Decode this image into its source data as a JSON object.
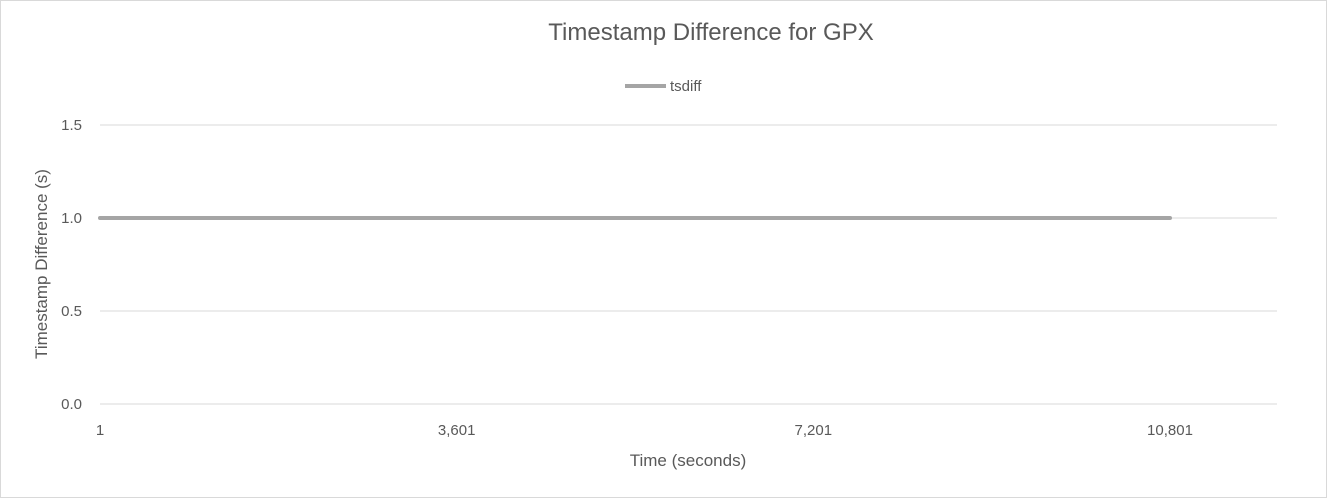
{
  "chart_data": {
    "type": "line",
    "title": "Timestamp Difference for GPX",
    "xlabel": "Time (seconds)",
    "ylabel": "Timestamp Difference (s)",
    "legend_position": "top",
    "grid": true,
    "x_ticks": [
      "1",
      "3,601",
      "7,201",
      "10,801"
    ],
    "y_ticks": [
      "0.0",
      "0.5",
      "1.0",
      "1.5"
    ],
    "xlim": [
      1,
      11881
    ],
    "ylim": [
      0,
      1.5
    ],
    "colors": {
      "series": "#a5a5a5",
      "grid": "#d9d9d9",
      "text": "#595959"
    },
    "series": [
      {
        "name": "tsdiff",
        "x": [
          1,
          10801
        ],
        "y": [
          1.0,
          1.0
        ]
      }
    ]
  }
}
